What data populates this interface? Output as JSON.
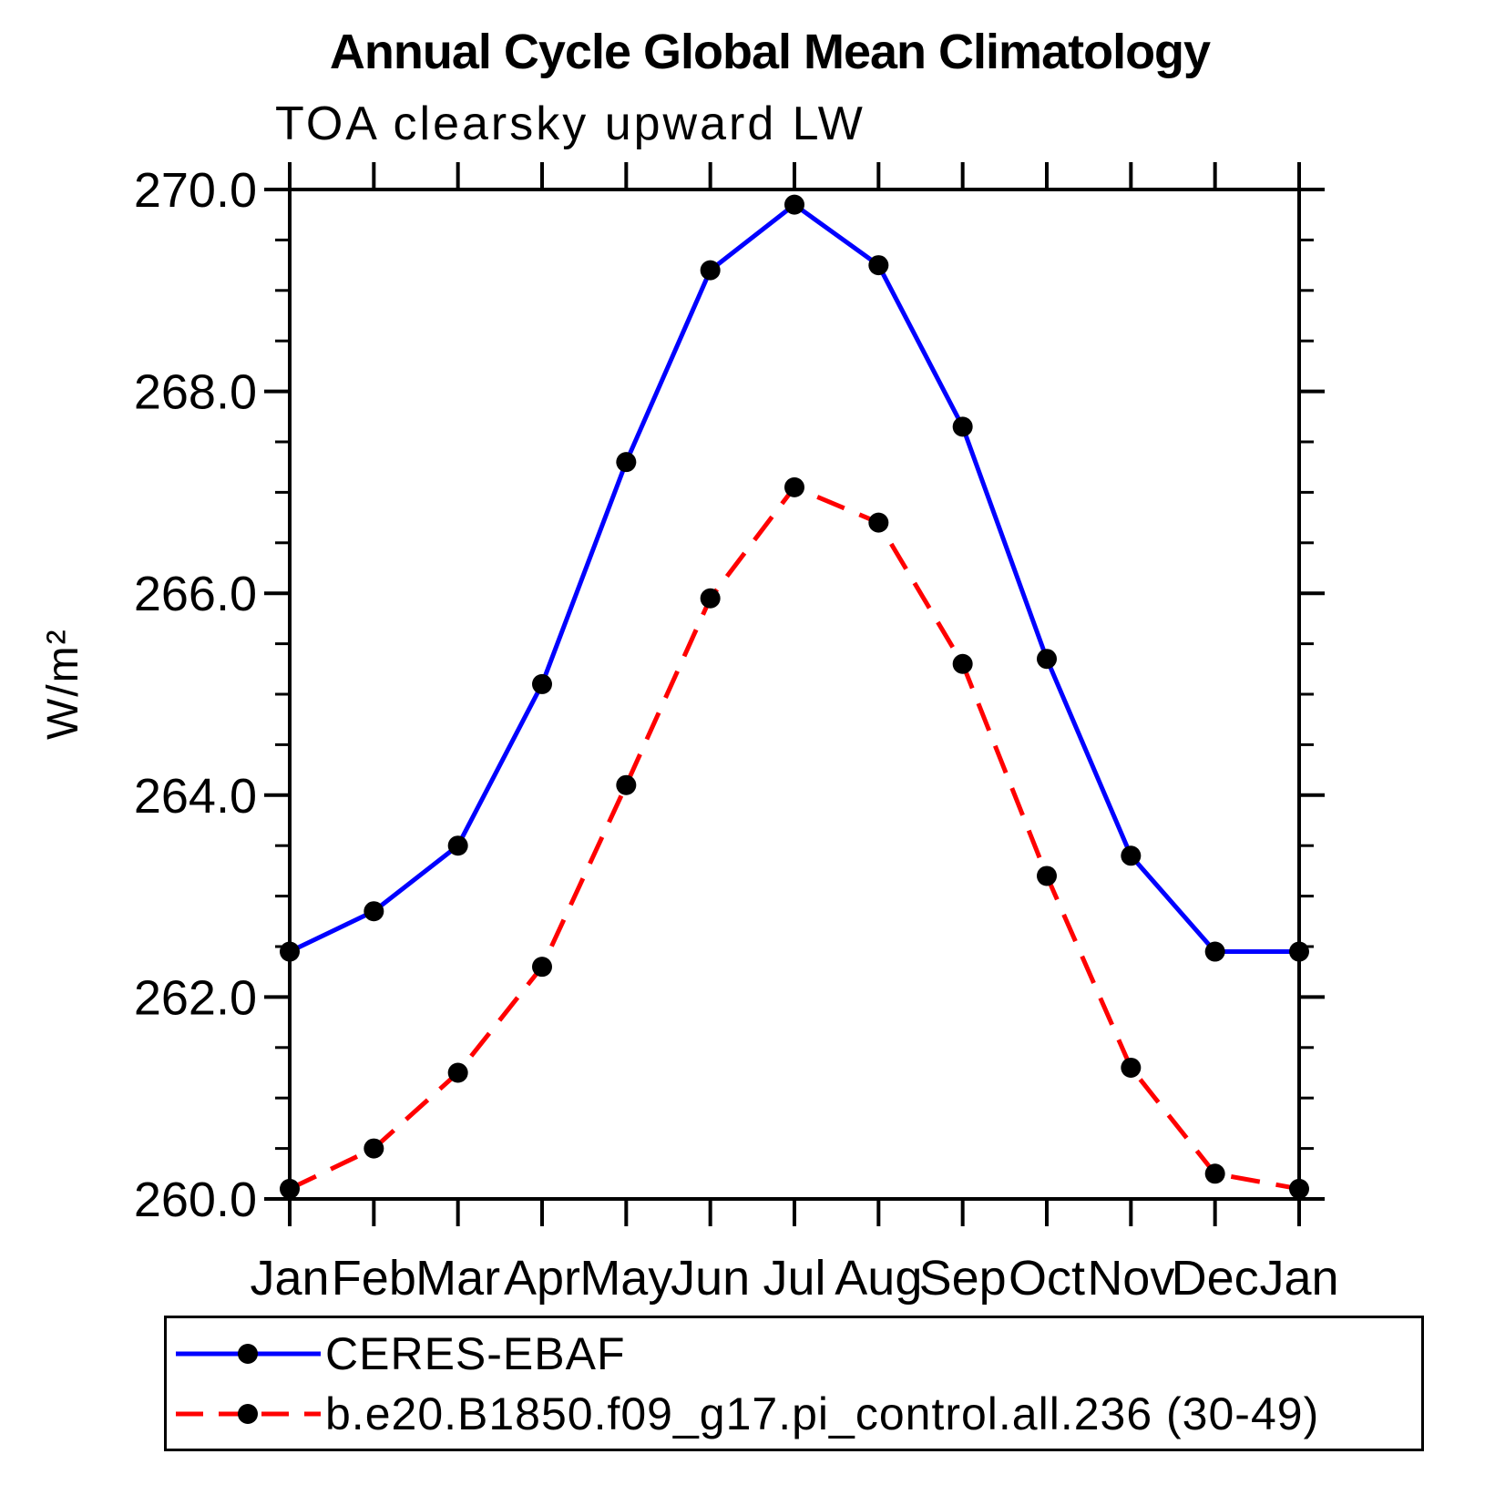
{
  "title": "Annual Cycle Global Mean Climatology",
  "subtitle": "TOA clearsky upward LW",
  "chart_data": {
    "type": "line",
    "title": "Annual Cycle Global Mean Climatology",
    "subtitle": "TOA clearsky upward LW",
    "xlabel": "",
    "ylabel": "W/m²",
    "x_categories": [
      "Jan",
      "Feb",
      "Mar",
      "Apr",
      "May",
      "Jun",
      "Jul",
      "Aug",
      "Sep",
      "Oct",
      "Nov",
      "Dec",
      "Jan"
    ],
    "ylim": [
      260.0,
      270.0
    ],
    "ytick_interval": 2.0,
    "minor_tick_interval": 0.5,
    "ytick_labels": [
      "260.0",
      "262.0",
      "264.0",
      "266.0",
      "268.0",
      "270.0"
    ],
    "grid": false,
    "legend_position": "bottom",
    "axis_color": "#000000",
    "marker_color": "#000000",
    "series": [
      {
        "name": "CERES-EBAF",
        "color": "#0000FF",
        "style": "solid",
        "marker": "filled-circle",
        "values": [
          262.45,
          262.85,
          263.5,
          265.1,
          267.3,
          269.2,
          269.85,
          269.25,
          267.65,
          265.35,
          263.4,
          262.45,
          262.45
        ]
      },
      {
        "name": "b.e20.B1850.f09_g17.pi_control.all.236 (30-49)",
        "color": "#FF0000",
        "style": "dashed",
        "marker": "filled-circle",
        "values": [
          260.1,
          260.5,
          261.25,
          262.3,
          264.1,
          265.95,
          267.05,
          266.7,
          265.3,
          263.2,
          261.3,
          260.25,
          260.1
        ]
      }
    ]
  }
}
